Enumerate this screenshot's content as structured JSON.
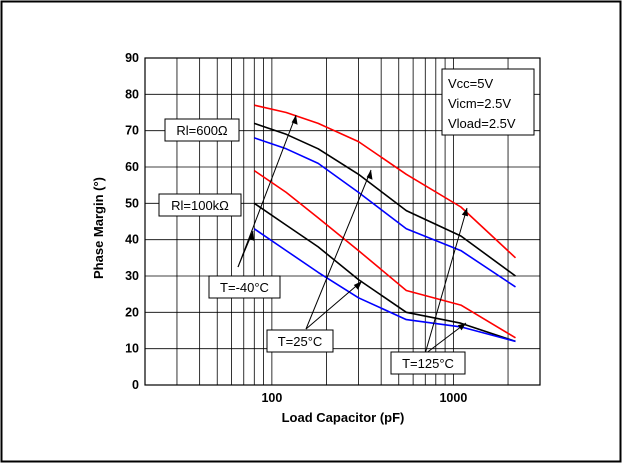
{
  "chart_data": {
    "type": "line",
    "xlabel": "Load Capacitor (pF)",
    "ylabel": "Phase Margin (°)",
    "xscale": "log",
    "xlim": [
      20,
      3000
    ],
    "ylim": [
      0,
      90
    ],
    "grid": true,
    "x_tick_labels": [
      {
        "value": 100,
        "label": "100"
      },
      {
        "value": 1000,
        "label": "1000"
      }
    ],
    "y_ticks": [
      0,
      10,
      20,
      30,
      40,
      50,
      60,
      70,
      80,
      90
    ],
    "conditions": [
      "Vcc=5V",
      "Vicm=2.5V",
      "Vload=2.5V"
    ],
    "annotations": {
      "rl_high": "Rl=600Ω",
      "rl_low": "Rl=100kΩ",
      "temp_cold": "T=-40°C",
      "temp_room": "T=25°C",
      "temp_hot": "T=125°C"
    },
    "colors": {
      "cold": "#ff0000",
      "room": "#000000",
      "hot": "#0000ff"
    },
    "series": [
      {
        "group": "Rl=600Ω",
        "temperature": "T=-40°C",
        "color": "#ff0000",
        "x": [
          80,
          120,
          180,
          300,
          550,
          1100,
          2200
        ],
        "y": [
          77,
          75,
          72,
          67,
          58,
          49,
          35
        ]
      },
      {
        "group": "Rl=600Ω",
        "temperature": "T=25°C",
        "color": "#000000",
        "x": [
          80,
          120,
          180,
          300,
          550,
          1100,
          2200
        ],
        "y": [
          72,
          69,
          65,
          58,
          48,
          41,
          30
        ]
      },
      {
        "group": "Rl=600Ω",
        "temperature": "T=125°C",
        "color": "#0000ff",
        "x": [
          80,
          120,
          180,
          300,
          550,
          1100,
          2200
        ],
        "y": [
          68,
          65,
          61,
          53,
          43,
          37,
          27
        ]
      },
      {
        "group": "Rl=100kΩ",
        "temperature": "T=-40°C",
        "color": "#ff0000",
        "x": [
          80,
          120,
          180,
          300,
          550,
          1100,
          2200
        ],
        "y": [
          59,
          53,
          46,
          37,
          26,
          22,
          13
        ]
      },
      {
        "group": "Rl=100kΩ",
        "temperature": "T=25°C",
        "color": "#000000",
        "x": [
          80,
          120,
          180,
          300,
          550,
          1100,
          2200
        ],
        "y": [
          50,
          44,
          38,
          29,
          20,
          17,
          12
        ]
      },
      {
        "group": "Rl=100kΩ",
        "temperature": "T=125°C",
        "color": "#0000ff",
        "x": [
          80,
          120,
          180,
          300,
          550,
          1100,
          2200
        ],
        "y": [
          43,
          37,
          31,
          24,
          18,
          16,
          12
        ]
      }
    ]
  }
}
